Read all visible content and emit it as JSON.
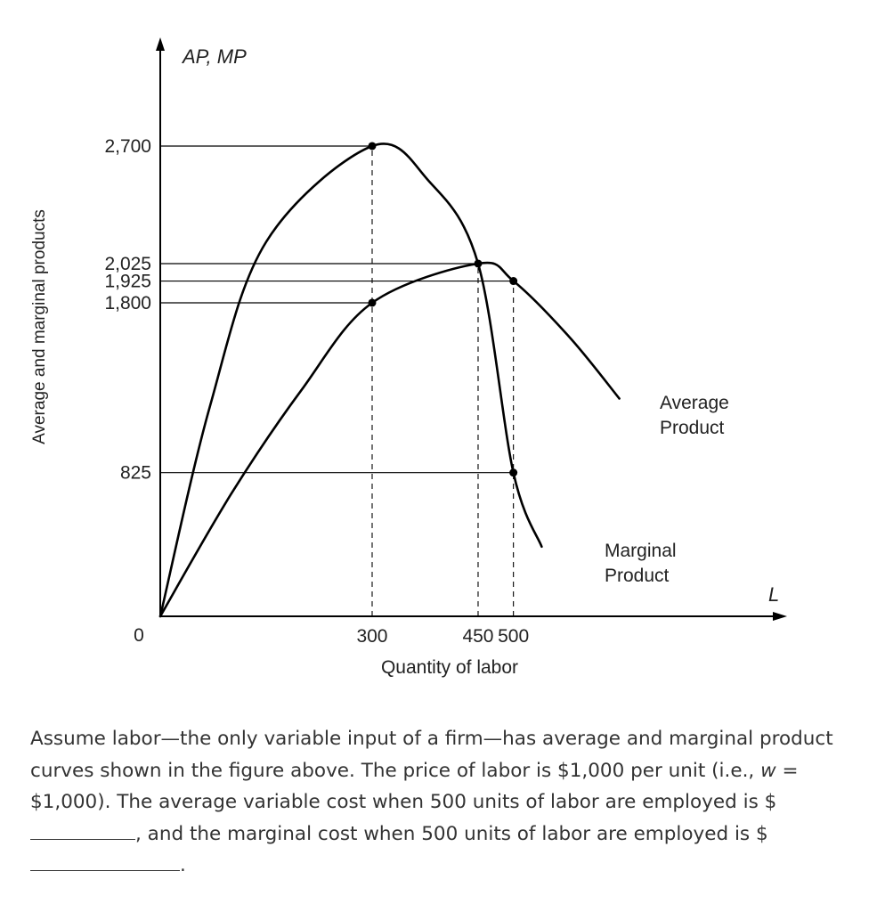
{
  "chart_data": {
    "type": "line",
    "y_axis_title": "AP, MP",
    "y_axis_side_label": "Average and marginal products",
    "x_axis_title": "L",
    "x_axis_label": "Quantity of labor",
    "origin_label": "0",
    "xlim": [
      0,
      1200
    ],
    "ylim": [
      0,
      3050
    ],
    "y_ticks": [
      {
        "value": 2700,
        "label": "2,700"
      },
      {
        "value": 2025,
        "label": "2,025"
      },
      {
        "value": 1925,
        "label": "1,925"
      },
      {
        "value": 1800,
        "label": "1,800"
      },
      {
        "value": 825,
        "label": "825"
      }
    ],
    "x_ticks": [
      {
        "value": 300,
        "label": "300"
      },
      {
        "value": 450,
        "label": "450"
      },
      {
        "value": 500,
        "label": "500"
      }
    ],
    "series": [
      {
        "name": "Average Product",
        "label_lines": [
          "Average",
          "Product"
        ],
        "points": [
          [
            0,
            0
          ],
          [
            100,
            700
          ],
          [
            200,
            1300
          ],
          [
            300,
            1800
          ],
          [
            450,
            2025
          ],
          [
            500,
            1925
          ],
          [
            580,
            1600
          ],
          [
            650,
            1250
          ]
        ]
      },
      {
        "name": "Marginal Product",
        "label_lines": [
          "Marginal",
          "Product"
        ],
        "points": [
          [
            0,
            0
          ],
          [
            70,
            1200
          ],
          [
            150,
            2150
          ],
          [
            300,
            2700
          ],
          [
            380,
            2500
          ],
          [
            450,
            2025
          ],
          [
            500,
            825
          ],
          [
            540,
            400
          ]
        ]
      }
    ],
    "highlighted_points": [
      {
        "x": 300,
        "y": 2700
      },
      {
        "x": 300,
        "y": 1800
      },
      {
        "x": 450,
        "y": 2025
      },
      {
        "x": 500,
        "y": 1925
      },
      {
        "x": 500,
        "y": 825
      }
    ],
    "reference_lines": {
      "horizontal": [
        {
          "y": 2700,
          "to_x": 300
        },
        {
          "y": 2025,
          "to_x": 450
        },
        {
          "y": 1925,
          "to_x": 500
        },
        {
          "y": 1800,
          "to_x": 300
        },
        {
          "y": 825,
          "to_x": 500
        }
      ],
      "vertical_dashed": [
        {
          "x": 300,
          "from_y": 0,
          "to_y": 2700
        },
        {
          "x": 450,
          "from_y": 0,
          "to_y": 2025
        },
        {
          "x": 500,
          "from_y": 0,
          "to_y": 1925
        }
      ]
    }
  },
  "question": {
    "part1": "Assume labor—the only variable input of a firm—has average and marginal product curves shown in the figure above. The price of labor is $1,000 per unit (i.e., ",
    "w_symbol": "w",
    "part2": " = $1,000). The average variable cost when 500 units of labor are employed is $",
    "part3": ", and the marginal cost when 500 units of labor are employed is $",
    "part4": "."
  }
}
